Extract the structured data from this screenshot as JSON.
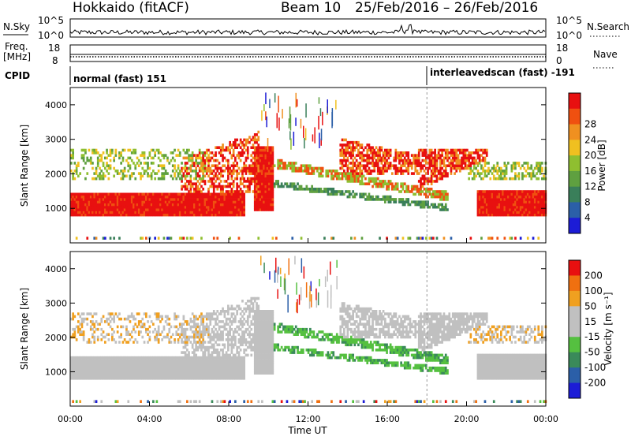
{
  "header": {
    "station": "Hokkaido (fitACF)",
    "beam": "Beam 10",
    "dates": "25/Feb/2016 – 26/Feb/2016"
  },
  "top_panels": {
    "nsky_label": "N.Sky",
    "nsky_ticks": [
      "10^5",
      "10^0"
    ],
    "nsearch_label": "N.Search",
    "nsearch_ticks": [
      "10^5",
      "10^0"
    ],
    "freq_label_1": "Freq.",
    "freq_label_2": "[MHz]",
    "freq_ticks": [
      "18",
      "8"
    ],
    "nave_label": "Nave",
    "nave_ticks": [
      "18",
      "0"
    ],
    "cpid_label": "CPID",
    "cpid_modes": [
      {
        "name": "normal (fast) 151",
        "start_hour": 0
      },
      {
        "name": "interleavedscan (fast) -191",
        "start_hour": 18
      }
    ]
  },
  "chart_data": [
    {
      "type": "heatmap",
      "name": "Power",
      "ylabel": "Slant Range [km]",
      "yticks": [
        "1000",
        "2000",
        "3000",
        "4000"
      ],
      "ylim": [
        0,
        4500
      ],
      "colorbar_label": "Power [dB]",
      "colorbar_ticks": [
        "4",
        "8",
        "12",
        "16",
        "20",
        "24",
        "28"
      ],
      "colorbar_range": [
        0,
        32
      ],
      "colors": [
        "#1c1cd6",
        "#2b5fa8",
        "#3a7f5a",
        "#5fa040",
        "#8fbf30",
        "#f0c020",
        "#f09020",
        "#f05010",
        "#e81010"
      ]
    },
    {
      "type": "heatmap",
      "name": "Velocity",
      "ylabel": "Slant Range [km]",
      "yticks": [
        "1000",
        "2000",
        "3000",
        "4000"
      ],
      "ylim": [
        0,
        4500
      ],
      "colorbar_label": "Velocity [m s⁻¹]",
      "colorbar_ticks": [
        "200",
        "100",
        "50",
        "15",
        "-15",
        "-50",
        "-100",
        "-200"
      ],
      "colors": [
        "#1c1cd6",
        "#2b5fa8",
        "#3a8a5a",
        "#55c040",
        "#c0c0c0",
        "#c0c0c0",
        "#f0a020",
        "#f07010",
        "#e81010"
      ]
    }
  ],
  "xaxis": {
    "label": "Time UT",
    "ticks": [
      "00:00",
      "04:00",
      "08:00",
      "12:00",
      "16:00",
      "20:00",
      "00:00"
    ],
    "range_hours": [
      0,
      24
    ]
  }
}
